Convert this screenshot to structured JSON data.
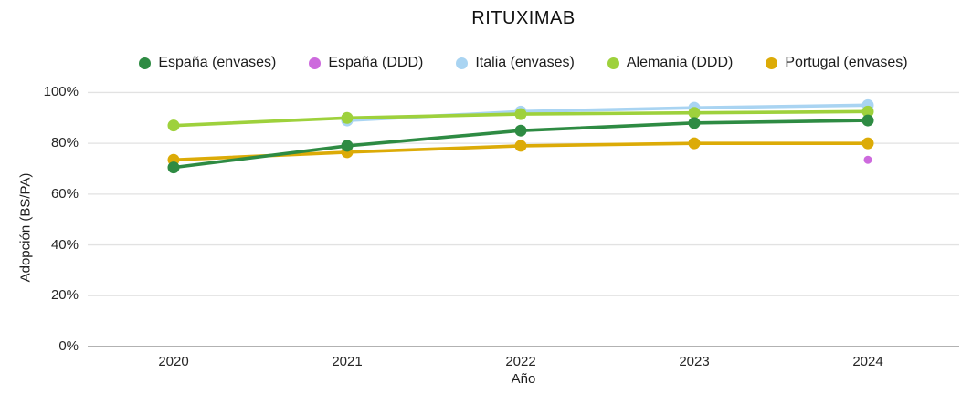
{
  "chart_data": {
    "type": "line",
    "title": "RITUXIMAB",
    "xlabel": "Año",
    "ylabel": "Adopción (BS/PA)",
    "x": [
      2020,
      2021,
      2022,
      2023,
      2024
    ],
    "ylim": [
      0,
      100
    ],
    "yticks": [
      {
        "pct": 0,
        "label": "0%"
      },
      {
        "pct": 20,
        "label": "20%"
      },
      {
        "pct": 40,
        "label": "40%"
      },
      {
        "pct": 60,
        "label": "60%"
      },
      {
        "pct": 80,
        "label": "80%"
      },
      {
        "pct": 100,
        "label": "100%"
      }
    ],
    "grid": true,
    "legend_position": "top",
    "series": [
      {
        "name": "España (envases)",
        "color": "#2e8b43",
        "x": [
          2020,
          2021,
          2022,
          2023,
          2024
        ],
        "values": [
          70.5,
          79,
          85,
          88,
          89
        ],
        "marker_only": false
      },
      {
        "name": "España (DDD)",
        "color": "#cd6add",
        "x": [
          2024
        ],
        "values": [
          73.5
        ],
        "marker_only": true
      },
      {
        "name": "Italia (envases)",
        "color": "#a9d4f2",
        "x": [
          2021,
          2022,
          2023,
          2024
        ],
        "values": [
          89,
          92.5,
          94,
          95
        ],
        "marker_only": false
      },
      {
        "name": "Alemania (DDD)",
        "color": "#9ed13c",
        "x": [
          2020,
          2021,
          2022,
          2023,
          2024
        ],
        "values": [
          87,
          90,
          91.5,
          92,
          92.5
        ],
        "marker_only": false
      },
      {
        "name": "Portugal (envases)",
        "color": "#dcab07",
        "x": [
          2020,
          2021,
          2022,
          2023,
          2024
        ],
        "values": [
          73.5,
          76.5,
          79,
          80,
          80
        ],
        "marker_only": false
      }
    ],
    "colors": {
      "gridline": "#e2e2e2",
      "axis_line": "#999999"
    }
  }
}
